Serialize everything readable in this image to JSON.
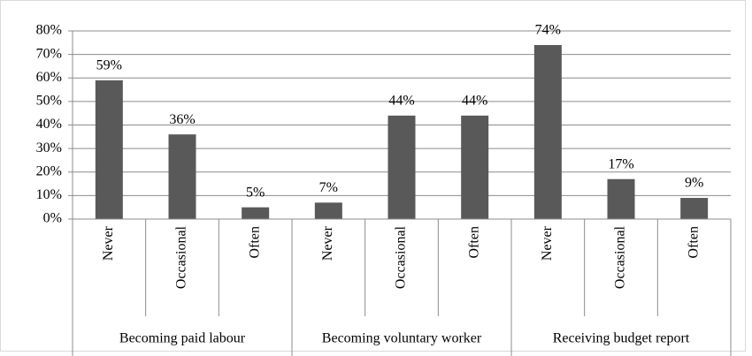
{
  "chart_data": {
    "type": "bar",
    "categories": [
      "Never",
      "Occasional",
      "Often",
      "Never",
      "Occasional",
      "Often",
      "Never",
      "Occasional",
      "Often"
    ],
    "groups": [
      "Becoming paid labour",
      "Becoming voluntary worker",
      "Receiving budget report"
    ],
    "values": [
      59,
      36,
      5,
      7,
      44,
      44,
      74,
      17,
      9
    ],
    "value_labels": [
      "59%",
      "36%",
      "5%",
      "7%",
      "44%",
      "44%",
      "74%",
      "17%",
      "9%"
    ],
    "color": "#595959",
    "ylim": [
      0,
      80
    ],
    "yticks": [
      {
        "value": 0,
        "label": "0%"
      },
      {
        "value": 10,
        "label": "10%"
      },
      {
        "value": 20,
        "label": "20%"
      },
      {
        "value": 30,
        "label": "30%"
      },
      {
        "value": 40,
        "label": "40%"
      },
      {
        "value": 50,
        "label": "50%"
      },
      {
        "value": 60,
        "label": "60%"
      },
      {
        "value": 70,
        "label": "70%"
      },
      {
        "value": 80,
        "label": "80%"
      }
    ],
    "grid": true
  }
}
